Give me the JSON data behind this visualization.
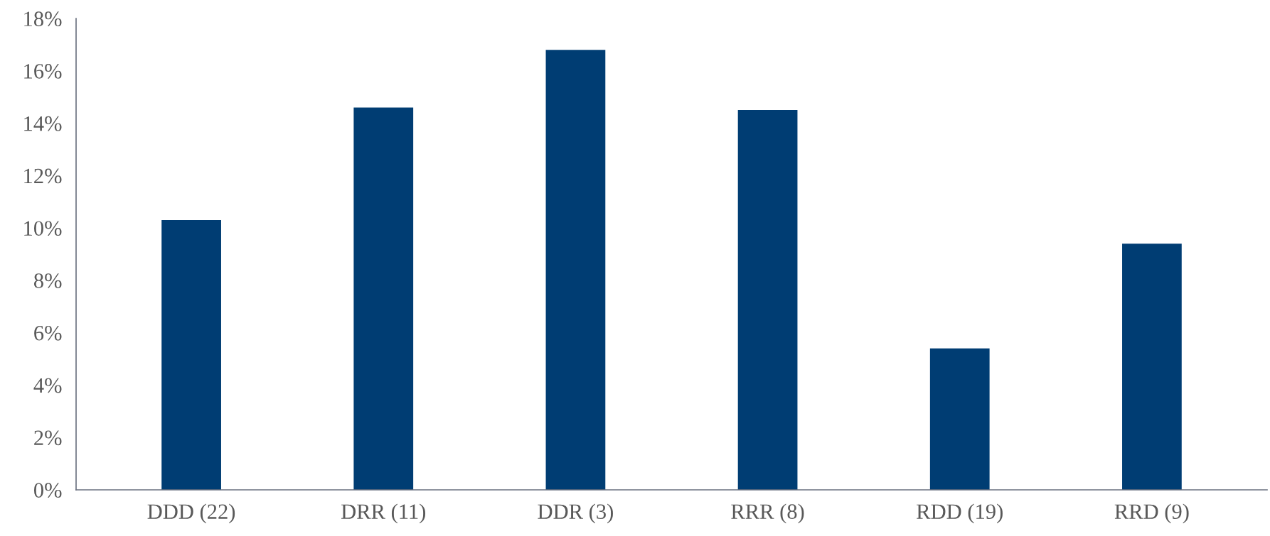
{
  "chart_data": {
    "type": "bar",
    "categories": [
      "DDD (22)",
      "DRR (11)",
      "DDR (3)",
      "RRR (8)",
      "RDD (19)",
      "RRD (9)"
    ],
    "values": [
      10.3,
      14.6,
      16.8,
      14.5,
      5.4,
      9.4
    ],
    "color": "#003d73",
    "ylim": [
      0,
      18
    ],
    "yticks": [
      {
        "value": 0,
        "label": "0%"
      },
      {
        "value": 2,
        "label": "2%"
      },
      {
        "value": 4,
        "label": "4%"
      },
      {
        "value": 6,
        "label": "6%"
      },
      {
        "value": 8,
        "label": "8%"
      },
      {
        "value": 10,
        "label": "10%"
      },
      {
        "value": 12,
        "label": "12%"
      },
      {
        "value": 14,
        "label": "14%"
      },
      {
        "value": 16,
        "label": "16%"
      },
      {
        "value": 18,
        "label": "18%"
      }
    ],
    "grid": false
  }
}
